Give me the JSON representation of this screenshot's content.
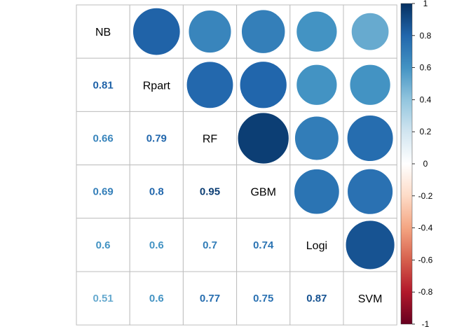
{
  "chart_data": {
    "type": "heatmap",
    "variables": [
      "NB",
      "Rpart",
      "RF",
      "GBM",
      "Logi",
      "SVM"
    ],
    "matrix": [
      [
        1,
        0.81,
        0.66,
        0.69,
        0.6,
        0.51
      ],
      [
        0.81,
        1,
        0.79,
        0.8,
        0.6,
        0.6
      ],
      [
        0.66,
        0.79,
        1,
        0.95,
        0.7,
        0.77
      ],
      [
        0.69,
        0.8,
        0.95,
        1,
        0.74,
        0.75
      ],
      [
        0.6,
        0.6,
        0.7,
        0.74,
        1,
        0.87
      ],
      [
        0.51,
        0.6,
        0.77,
        0.75,
        0.87,
        1
      ]
    ],
    "lower_labels": [
      [
        "0.81"
      ],
      [
        "0.66",
        "0.79"
      ],
      [
        "0.69",
        "0.8",
        "0.95"
      ],
      [
        "0.6",
        "0.6",
        "0.7",
        "0.74"
      ],
      [
        "0.51",
        "0.6",
        "0.77",
        "0.75",
        "0.87"
      ]
    ],
    "upper": "circle",
    "lower": "number",
    "color_range": [
      -1,
      1
    ],
    "colorbar_ticks": [
      "1",
      "0.8",
      "0.6",
      "0.4",
      "0.2",
      "0",
      "-0.2",
      "-0.4",
      "-0.6",
      "-0.8",
      "-1"
    ],
    "palette": [
      "#67001F",
      "#B2182B",
      "#D6604D",
      "#F4A582",
      "#FDDBC7",
      "#FFFFFF",
      "#D1E5F0",
      "#92C5DE",
      "#4393C3",
      "#2166AC",
      "#053061"
    ],
    "grid_color": "#bebebe"
  }
}
